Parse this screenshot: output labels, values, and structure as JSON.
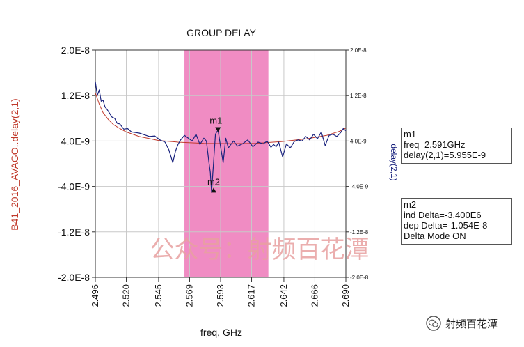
{
  "chart_data": {
    "type": "line",
    "title": "GROUP DELAY",
    "xlabel": "freq, GHz",
    "ylabel_left": "B41_2016_AVAGO..delay(2,1)",
    "ylabel_right": "delay(2,1)",
    "xlim": [
      2.496,
      2.69
    ],
    "ylim": [
      -2e-08,
      2e-08
    ],
    "x_ticks": [
      "2.496",
      "2.520",
      "2.545",
      "2.569",
      "2.593",
      "2.617",
      "2.642",
      "2.666",
      "2.690"
    ],
    "x_tick_values": [
      2.496,
      2.52,
      2.545,
      2.569,
      2.593,
      2.617,
      2.642,
      2.666,
      2.69
    ],
    "y_ticks_left": [
      "2.0E-8",
      "1.2E-8",
      "4.0E-9",
      "-4.0E-9",
      "-1.2E-8",
      "-2.0E-8"
    ],
    "y_ticks_right": [
      "2.0E-8",
      "1.2E-8",
      "4.0E-9",
      "-4.0E-9",
      "-1.2E-8",
      "-2.0E-8"
    ],
    "y_tick_values": [
      2e-08,
      1.2e-08,
      4e-09,
      -4e-09,
      -1.2e-08,
      -2e-08
    ],
    "grid": true,
    "highlight_band": {
      "x_start": 2.565,
      "x_end": 2.63,
      "color": "#f08cc3"
    },
    "series": [
      {
        "name": "B41_2016_AVAGO..delay(2,1)",
        "color": "#c0392b",
        "x": [
          2.496,
          2.499,
          2.502,
          2.506,
          2.51,
          2.515,
          2.52,
          2.53,
          2.545,
          2.56,
          2.58,
          2.6,
          2.62,
          2.64,
          2.66,
          2.675,
          2.685,
          2.69
        ],
        "y": [
          1.25e-08,
          1.05e-08,
          9e-09,
          7.8e-09,
          6.9e-09,
          6.2e-09,
          5.6e-09,
          4.8e-09,
          4.1e-09,
          3.8e-09,
          3.6e-09,
          3.55e-09,
          3.6e-09,
          3.9e-09,
          4.4e-09,
          5e-09,
          5.7e-09,
          6.3e-09
        ]
      },
      {
        "name": "delay(2,1)",
        "color": "#1a237e",
        "x": [
          2.496,
          2.4975,
          2.499,
          2.5005,
          2.502,
          2.5035,
          2.505,
          2.507,
          2.509,
          2.511,
          2.513,
          2.515,
          2.518,
          2.521,
          2.524,
          2.527,
          2.53,
          2.534,
          2.538,
          2.542,
          2.546,
          2.55,
          2.553,
          2.556,
          2.558,
          2.56,
          2.562,
          2.565,
          2.568,
          2.571,
          2.574,
          2.577,
          2.58,
          2.582,
          2.584,
          2.585,
          2.586,
          2.5875,
          2.589,
          2.591,
          2.593,
          2.595,
          2.597,
          2.599,
          2.601,
          2.603,
          2.606,
          2.61,
          2.614,
          2.618,
          2.622,
          2.626,
          2.629,
          2.632,
          2.634,
          2.636,
          2.638,
          2.641,
          2.644,
          2.647,
          2.65,
          2.653,
          2.656,
          2.659,
          2.662,
          2.665,
          2.668,
          2.671,
          2.674,
          2.677,
          2.68,
          2.683,
          2.686,
          2.688,
          2.69
        ],
        "y": [
          1.45e-08,
          1.2e-08,
          1.3e-08,
          1.1e-08,
          1.12e-08,
          1e-08,
          9.6e-09,
          8.9e-09,
          8.2e-09,
          8e-09,
          7.1e-09,
          7e-09,
          6.1e-09,
          6.2e-09,
          5.6e-09,
          5.5e-09,
          5.4e-09,
          5.1e-09,
          4.8e-09,
          4.9e-09,
          4.2e-09,
          3.8e-09,
          2.4e-09,
          2e-10,
          2.2e-09,
          3.4e-09,
          4.2e-09,
          5e-09,
          4.5e-09,
          4e-09,
          5.2e-09,
          3.4e-09,
          4.5e-09,
          4e-09,
          2e-10,
          -1.5e-09,
          -5e-09,
          0.0,
          5.2e-09,
          5.955e-09,
          3e-09,
          2e-10,
          4.5e-09,
          2.8e-09,
          3.4e-09,
          4e-09,
          3.1e-09,
          3.5e-09,
          4.2e-09,
          3e-09,
          3.8e-09,
          3.5e-09,
          4e-09,
          2.9e-09,
          3.4e-09,
          3e-09,
          3.8e-09,
          1.2e-09,
          3.5e-09,
          2.8e-09,
          3.9e-09,
          4.2e-09,
          4e-09,
          4.8e-09,
          4.2e-09,
          5.2e-09,
          4.4e-09,
          5.6e-09,
          3.2e-09,
          5e-09,
          5.2e-09,
          4.8e-09,
          5.5e-09,
          6.2e-09,
          5.8e-09
        ]
      }
    ],
    "markers": [
      {
        "label": "m1",
        "x": 2.591,
        "y": 5.955e-09,
        "lines": [
          "m1",
          "freq=2.591GHz",
          "delay(2,1)=5.955E-9"
        ]
      },
      {
        "label": "m2",
        "x": 2.5876,
        "y": -4.585e-09,
        "lines": [
          "m2",
          "ind Delta=-3.400E6",
          "dep Delta=-1.054E-8",
          "Delta Mode ON"
        ]
      }
    ]
  },
  "watermark": "公众号：射频百花潭",
  "footer": {
    "brand": "射频百花潭",
    "icon": "wechat-icon"
  },
  "colors": {
    "band": "#f08cc3",
    "left_axis_label": "#c0392b",
    "right_axis_label": "#1a237e",
    "grid": "#c8c8c8",
    "watermark": "#e8a0a0"
  }
}
